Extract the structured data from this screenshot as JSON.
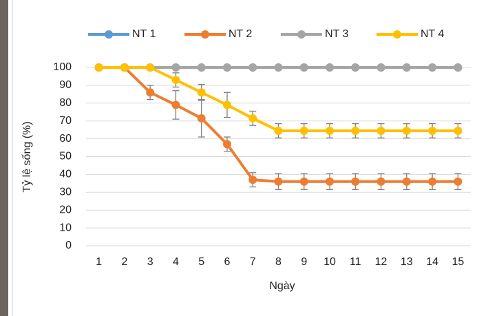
{
  "chart_data": {
    "type": "line",
    "x_label": "Ngày",
    "y_label": "Tỷ lệ sống (%)",
    "categories": [
      "1",
      "2",
      "3",
      "4",
      "5",
      "6",
      "7",
      "8",
      "9",
      "10",
      "11",
      "12",
      "13",
      "14",
      "15"
    ],
    "ylim": [
      0,
      100
    ],
    "yticks": [
      0,
      10,
      20,
      30,
      40,
      50,
      60,
      70,
      80,
      90,
      100
    ],
    "grid": true,
    "legend": "top",
    "series": [
      {
        "name": "NT 1",
        "color": "#5b9bd5",
        "values": [
          100,
          100,
          100,
          100,
          100,
          100,
          100,
          100,
          100,
          100,
          100,
          100,
          100,
          100,
          100
        ]
      },
      {
        "name": "NT 2",
        "color": "#ed7d31",
        "values": [
          100,
          100,
          86,
          79,
          71.5,
          57,
          37,
          36,
          36,
          36,
          36,
          36,
          36,
          36,
          36
        ],
        "errors": [
          null,
          null,
          4,
          8,
          10.5,
          4,
          4,
          4.5,
          4.5,
          4.5,
          4.5,
          4.5,
          4.5,
          4.5,
          4.5
        ]
      },
      {
        "name": "NT 3",
        "color": "#a5a5a5",
        "values": [
          100,
          100,
          100,
          100,
          100,
          100,
          100,
          100,
          100,
          100,
          100,
          100,
          100,
          100,
          100
        ]
      },
      {
        "name": "NT 4",
        "color": "#ffc000",
        "values": [
          100,
          100,
          100,
          93,
          86,
          79,
          71.5,
          64.5,
          64.5,
          64.5,
          64.5,
          64.5,
          64.5,
          64.5,
          64.5
        ],
        "errors": [
          null,
          null,
          null,
          4,
          4.5,
          7,
          4,
          4,
          4,
          4,
          4,
          4,
          4,
          4,
          4
        ]
      }
    ]
  }
}
